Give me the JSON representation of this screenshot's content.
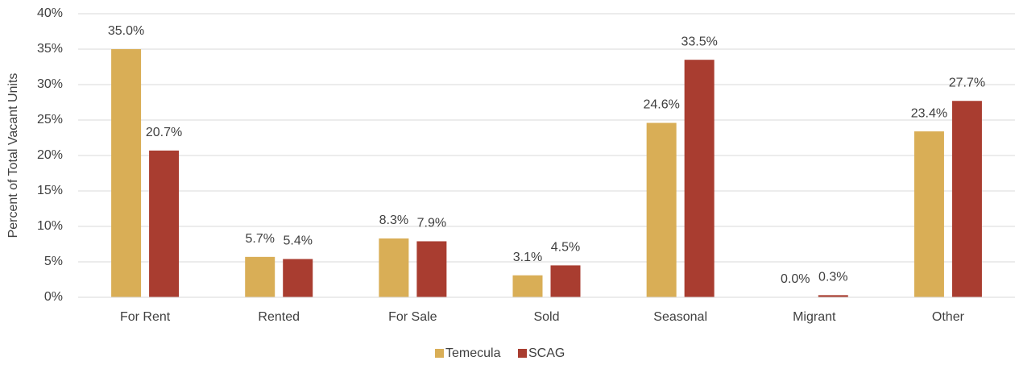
{
  "chart_data": {
    "type": "bar",
    "y_label": "Percent of Total Vacant Units",
    "categories": [
      "For Rent",
      "Rented",
      "For Sale",
      "Sold",
      "Seasonal",
      "Migrant",
      "Other"
    ],
    "series": [
      {
        "name": "Temecula",
        "color": "#d9ae56",
        "values": [
          35.0,
          5.7,
          8.3,
          3.1,
          24.6,
          0.0,
          23.4
        ],
        "value_labels": [
          "35.0%",
          "5.7%",
          "8.3%",
          "3.1%",
          "24.6%",
          "0.0%",
          "23.4%"
        ]
      },
      {
        "name": "SCAG",
        "color": "#a93d30",
        "values": [
          20.7,
          5.4,
          7.9,
          4.5,
          33.5,
          0.3,
          27.7
        ],
        "value_labels": [
          "20.7%",
          "5.4%",
          "7.9%",
          "4.5%",
          "33.5%",
          "0.3%",
          "27.7%"
        ]
      }
    ],
    "ylim": [
      0,
      40
    ],
    "yticks": [
      {
        "value": 0,
        "label": "0%"
      },
      {
        "value": 5,
        "label": "5%"
      },
      {
        "value": 10,
        "label": "10%"
      },
      {
        "value": 15,
        "label": "15%"
      },
      {
        "value": 20,
        "label": "20%"
      },
      {
        "value": 25,
        "label": "25%"
      },
      {
        "value": 30,
        "label": "30%"
      },
      {
        "value": 35,
        "label": "35%"
      },
      {
        "value": 40,
        "label": "40%"
      }
    ],
    "grid": true,
    "legend": "bottom"
  }
}
